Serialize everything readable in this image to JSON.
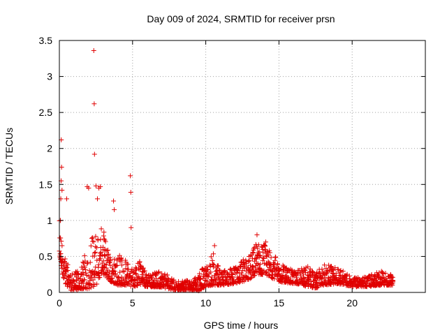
{
  "chart_data": {
    "type": "scatter",
    "title": "Day 009 of 2024, SRMTID for receiver prsn",
    "xlabel": "GPS time / hours",
    "ylabel": "SRMTID / TECUs",
    "xlim": [
      0,
      25
    ],
    "ylim": [
      0,
      3.5
    ],
    "xticks": [
      0,
      5,
      10,
      15,
      20
    ],
    "yticks": [
      0,
      0.5,
      1,
      1.5,
      2,
      2.5,
      3,
      3.5
    ],
    "xtick_labels": [
      "0",
      "5",
      "10",
      "15",
      "20"
    ],
    "ytick_labels": [
      "0",
      "0.5",
      "1",
      "1.5",
      "2",
      "2.5",
      "3",
      "3.5"
    ],
    "grid": true,
    "marker": "+",
    "series_color": "#e00000",
    "highlighted_points": [
      {
        "x": 0.07,
        "y": 1.0
      },
      {
        "x": 0.1,
        "y": 1.3
      },
      {
        "x": 0.12,
        "y": 1.55
      },
      {
        "x": 0.13,
        "y": 2.12
      },
      {
        "x": 0.15,
        "y": 1.74
      },
      {
        "x": 0.18,
        "y": 1.42
      },
      {
        "x": 0.5,
        "y": 1.3
      },
      {
        "x": 1.9,
        "y": 1.47
      },
      {
        "x": 2.0,
        "y": 1.45
      },
      {
        "x": 2.35,
        "y": 3.36
      },
      {
        "x": 2.38,
        "y": 2.62
      },
      {
        "x": 2.4,
        "y": 1.92
      },
      {
        "x": 2.5,
        "y": 1.48
      },
      {
        "x": 2.6,
        "y": 1.3
      },
      {
        "x": 2.7,
        "y": 1.45
      },
      {
        "x": 2.8,
        "y": 1.47
      },
      {
        "x": 3.7,
        "y": 1.27
      },
      {
        "x": 3.75,
        "y": 1.15
      },
      {
        "x": 4.85,
        "y": 1.62
      },
      {
        "x": 4.88,
        "y": 1.39
      },
      {
        "x": 4.9,
        "y": 0.9
      },
      {
        "x": 13.5,
        "y": 0.8
      },
      {
        "x": 14.1,
        "y": 0.7
      },
      {
        "x": 10.6,
        "y": 0.65
      }
    ],
    "envelope": [
      {
        "x": 0.0,
        "low": 0.5,
        "high": 1.0
      },
      {
        "x": 0.3,
        "low": 0.15,
        "high": 0.55
      },
      {
        "x": 0.8,
        "low": 0.02,
        "high": 0.25
      },
      {
        "x": 1.5,
        "low": 0.05,
        "high": 0.35
      },
      {
        "x": 2.0,
        "low": 0.05,
        "high": 0.75
      },
      {
        "x": 2.5,
        "low": 0.1,
        "high": 0.85
      },
      {
        "x": 3.0,
        "low": 0.25,
        "high": 0.9
      },
      {
        "x": 3.5,
        "low": 0.15,
        "high": 0.5
      },
      {
        "x": 4.0,
        "low": 0.1,
        "high": 0.55
      },
      {
        "x": 4.5,
        "low": 0.1,
        "high": 0.45
      },
      {
        "x": 5.0,
        "low": 0.08,
        "high": 0.35
      },
      {
        "x": 5.5,
        "low": 0.1,
        "high": 0.45
      },
      {
        "x": 6.0,
        "low": 0.08,
        "high": 0.25
      },
      {
        "x": 7.0,
        "low": 0.07,
        "high": 0.3
      },
      {
        "x": 8.0,
        "low": 0.03,
        "high": 0.15
      },
      {
        "x": 9.0,
        "low": 0.03,
        "high": 0.18
      },
      {
        "x": 9.5,
        "low": 0.02,
        "high": 0.25
      },
      {
        "x": 10.0,
        "low": 0.08,
        "high": 0.4
      },
      {
        "x": 10.5,
        "low": 0.1,
        "high": 0.55
      },
      {
        "x": 11.0,
        "low": 0.1,
        "high": 0.3
      },
      {
        "x": 12.0,
        "low": 0.12,
        "high": 0.35
      },
      {
        "x": 13.0,
        "low": 0.18,
        "high": 0.55
      },
      {
        "x": 13.5,
        "low": 0.25,
        "high": 0.72
      },
      {
        "x": 14.0,
        "low": 0.25,
        "high": 0.68
      },
      {
        "x": 14.5,
        "low": 0.2,
        "high": 0.6
      },
      {
        "x": 15.0,
        "low": 0.15,
        "high": 0.42
      },
      {
        "x": 16.0,
        "low": 0.12,
        "high": 0.3
      },
      {
        "x": 17.0,
        "low": 0.08,
        "high": 0.38
      },
      {
        "x": 17.5,
        "low": 0.05,
        "high": 0.25
      },
      {
        "x": 18.0,
        "low": 0.1,
        "high": 0.4
      },
      {
        "x": 19.0,
        "low": 0.12,
        "high": 0.35
      },
      {
        "x": 19.5,
        "low": 0.1,
        "high": 0.3
      },
      {
        "x": 20.0,
        "low": 0.08,
        "high": 0.2
      },
      {
        "x": 21.0,
        "low": 0.08,
        "high": 0.22
      },
      {
        "x": 22.0,
        "low": 0.1,
        "high": 0.3
      },
      {
        "x": 22.8,
        "low": 0.1,
        "high": 0.25
      }
    ]
  }
}
